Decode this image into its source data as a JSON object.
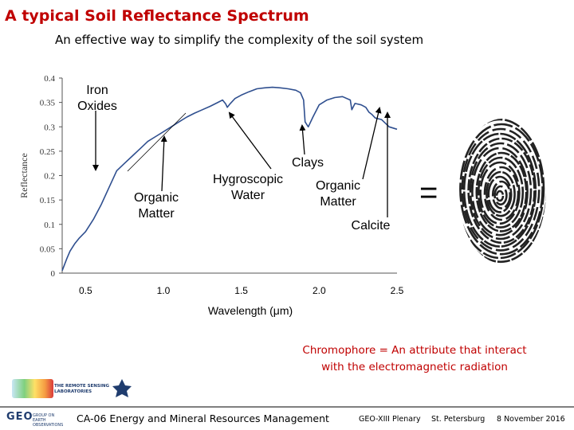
{
  "slide": {
    "title": "A typical Soil Reflectance Spectrum",
    "subtitle": "An effective way to simplify the complexity of the soil system",
    "equals_sign": "=",
    "chromophore_note": [
      "Chromophore = An attribute  that interact",
      "with the electromagnetic radiation"
    ]
  },
  "logos": {
    "remote_sensing": [
      "THE REMOTE SENSING",
      "LABORATORIES"
    ],
    "geo": {
      "main": "GEO",
      "sub": [
        "GROUP ON",
        "EARTH OBSERVATIONS"
      ]
    }
  },
  "footer": {
    "session": "CA-06 Energy and Mineral Resources Management",
    "event": "GEO-XIII Plenary",
    "city": "St. Petersburg",
    "date": "8 November 2016"
  },
  "colors": {
    "title": "#c00000",
    "note": "#c00000",
    "spectrum": "#2f4f8f",
    "logo_text": "#1f3c6e"
  },
  "chart_data": {
    "type": "line",
    "xlabel": "Wavelength (μm)",
    "ylabel": "Reflectance",
    "xlim": [
      0.35,
      2.5
    ],
    "ylim": [
      0,
      0.4
    ],
    "x_ticks": [
      0.5,
      1.0,
      1.5,
      2.0,
      2.5
    ],
    "x_tick_labels": [
      "0.5",
      "1.0",
      "1.5",
      "2.0",
      "2.5"
    ],
    "y_ticks": [
      0,
      0.05,
      0.1,
      0.15,
      0.2,
      0.25,
      0.3,
      0.35,
      0.4
    ],
    "y_tick_labels": [
      "0",
      "0.05",
      "0.1",
      "0.15",
      "0.2",
      "0.25",
      "0.3",
      "0.35",
      "0.4"
    ],
    "grid": false,
    "series": [
      {
        "x": [
          0.35,
          0.38,
          0.4,
          0.43,
          0.46,
          0.5,
          0.55,
          0.6,
          0.65,
          0.7,
          0.75,
          0.8,
          0.85,
          0.9,
          0.95,
          1.0,
          1.05,
          1.1,
          1.15,
          1.2,
          1.25,
          1.3,
          1.35,
          1.38,
          1.4,
          1.41,
          1.43,
          1.46,
          1.5,
          1.55,
          1.6,
          1.65,
          1.7,
          1.75,
          1.8,
          1.85,
          1.88,
          1.9,
          1.91,
          1.93,
          1.96,
          2.0,
          2.05,
          2.1,
          2.15,
          2.2,
          2.21,
          2.23,
          2.27,
          2.3,
          2.32,
          2.34,
          2.36,
          2.4,
          2.45,
          2.5
        ],
        "y": [
          0.005,
          0.03,
          0.045,
          0.06,
          0.072,
          0.085,
          0.11,
          0.14,
          0.175,
          0.21,
          0.225,
          0.24,
          0.255,
          0.27,
          0.28,
          0.29,
          0.3,
          0.31,
          0.32,
          0.328,
          0.335,
          0.342,
          0.35,
          0.355,
          0.347,
          0.34,
          0.348,
          0.358,
          0.365,
          0.372,
          0.378,
          0.38,
          0.381,
          0.38,
          0.378,
          0.375,
          0.37,
          0.355,
          0.31,
          0.3,
          0.32,
          0.345,
          0.355,
          0.36,
          0.362,
          0.355,
          0.335,
          0.348,
          0.345,
          0.34,
          0.33,
          0.325,
          0.318,
          0.315,
          0.3,
          0.295
        ]
      }
    ],
    "annotations": [
      {
        "lines": [
          "Iron",
          "Oxides"
        ]
      },
      {
        "lines": [
          "Organic",
          "Matter"
        ]
      },
      {
        "lines": [
          "Hygroscopic",
          "Water"
        ]
      },
      {
        "lines": [
          "Clays"
        ]
      },
      {
        "lines": [
          "Organic",
          "Matter"
        ]
      },
      {
        "lines": [
          "Calcite"
        ]
      }
    ]
  }
}
